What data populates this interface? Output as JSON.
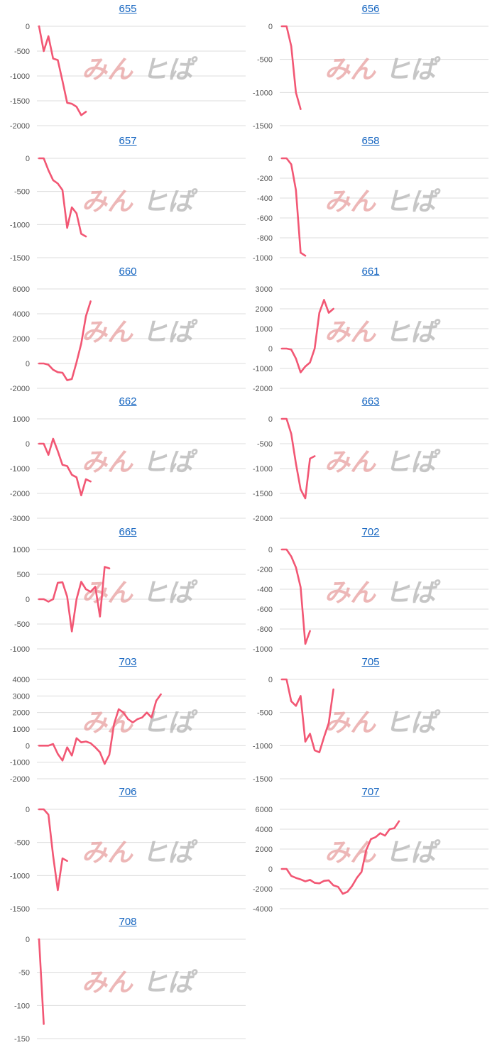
{
  "watermark": {
    "part1": "みん",
    "part2": "ヒぱ",
    "color1": "#e8a0a0",
    "color2": "#b8b8b8"
  },
  "colors": {
    "series": "#f25774",
    "title": "#1565c0",
    "grid": "#dcdcdc"
  },
  "chart_data": [
    {
      "type": "line",
      "title": "655",
      "ylim": [
        -2000,
        0
      ],
      "yticks": [
        0,
        -500,
        -1000,
        -1500,
        -2000
      ],
      "values": [
        0,
        -500,
        -200,
        -650,
        -680,
        -1100,
        -1540,
        -1560,
        -1620,
        -1790,
        -1720
      ]
    },
    {
      "type": "line",
      "title": "656",
      "ylim": [
        -1500,
        0
      ],
      "yticks": [
        0,
        -500,
        -1000,
        -1500
      ],
      "values": [
        0,
        0,
        -300,
        -1000,
        -1250
      ]
    },
    {
      "type": "line",
      "title": "657",
      "ylim": [
        -1500,
        0
      ],
      "yticks": [
        0,
        -500,
        -1000,
        -1500
      ],
      "values": [
        0,
        0,
        -180,
        -330,
        -380,
        -480,
        -1050,
        -740,
        -830,
        -1140,
        -1180
      ]
    },
    {
      "type": "line",
      "title": "658",
      "ylim": [
        -1000,
        0
      ],
      "yticks": [
        0,
        -200,
        -400,
        -600,
        -800,
        -1000
      ],
      "values": [
        0,
        0,
        -60,
        -320,
        -950,
        -980
      ]
    },
    {
      "type": "line",
      "title": "660",
      "ylim": [
        -2000,
        6000
      ],
      "yticks": [
        6000,
        4000,
        2000,
        0,
        -2000
      ],
      "values": [
        0,
        0,
        -100,
        -500,
        -700,
        -750,
        -1350,
        -1250,
        100,
        1600,
        3800,
        5000
      ]
    },
    {
      "type": "line",
      "title": "661",
      "ylim": [
        -2000,
        3000
      ],
      "yticks": [
        3000,
        2000,
        1000,
        0,
        -1000,
        -2000
      ],
      "values": [
        0,
        0,
        -50,
        -500,
        -1200,
        -900,
        -700,
        0,
        1800,
        2450,
        1800,
        2000
      ]
    },
    {
      "type": "line",
      "title": "662",
      "ylim": [
        -3000,
        1000
      ],
      "yticks": [
        1000,
        0,
        -1000,
        -2000,
        -3000
      ],
      "values": [
        0,
        0,
        -450,
        200,
        -300,
        -850,
        -900,
        -1250,
        -1350,
        -2080,
        -1430,
        -1520
      ]
    },
    {
      "type": "line",
      "title": "663",
      "ylim": [
        -2000,
        0
      ],
      "yticks": [
        0,
        -500,
        -1000,
        -1500,
        -2000
      ],
      "values": [
        0,
        0,
        -300,
        -900,
        -1420,
        -1600,
        -800,
        -750
      ]
    },
    {
      "type": "line",
      "title": "665",
      "ylim": [
        -1000,
        1000
      ],
      "yticks": [
        1000,
        500,
        0,
        -500,
        -1000
      ],
      "values": [
        0,
        0,
        -50,
        0,
        330,
        340,
        50,
        -650,
        0,
        350,
        200,
        150,
        250,
        -350,
        650,
        620
      ]
    },
    {
      "type": "line",
      "title": "702",
      "ylim": [
        -1000,
        0
      ],
      "yticks": [
        0,
        -200,
        -400,
        -600,
        -800,
        -1000
      ],
      "values": [
        0,
        0,
        -70,
        -180,
        -380,
        -950,
        -820
      ]
    },
    {
      "type": "line",
      "title": "703",
      "ylim": [
        -2000,
        4000
      ],
      "yticks": [
        4000,
        3000,
        2000,
        1000,
        0,
        -1000,
        -2000
      ],
      "values": [
        0,
        0,
        0,
        100,
        -500,
        -900,
        -100,
        -600,
        450,
        200,
        250,
        150,
        -100,
        -400,
        -1100,
        -550,
        1300,
        2200,
        2000,
        1600,
        1400,
        1600,
        1700,
        2000,
        1700,
        2700,
        3100
      ]
    },
    {
      "type": "line",
      "title": "705",
      "ylim": [
        -1500,
        0
      ],
      "yticks": [
        0,
        -500,
        -1000,
        -1500
      ],
      "values": [
        0,
        0,
        -330,
        -400,
        -250,
        -940,
        -820,
        -1070,
        -1100,
        -870,
        -660,
        -150
      ]
    },
    {
      "type": "line",
      "title": "706",
      "ylim": [
        -1500,
        0
      ],
      "yticks": [
        0,
        -500,
        -1000,
        -1500
      ],
      "values": [
        0,
        0,
        -80,
        -700,
        -1220,
        -740,
        -780
      ]
    },
    {
      "type": "line",
      "title": "707",
      "ylim": [
        -4000,
        6000
      ],
      "yticks": [
        6000,
        4000,
        2000,
        0,
        -2000,
        -4000
      ],
      "values": [
        0,
        0,
        -700,
        -900,
        -1050,
        -1250,
        -1100,
        -1400,
        -1450,
        -1200,
        -1150,
        -1650,
        -1800,
        -2500,
        -2300,
        -1700,
        -900,
        -300,
        1900,
        3000,
        3200,
        3600,
        3350,
        4000,
        4100,
        4800
      ]
    },
    {
      "type": "line",
      "title": "708",
      "ylim": [
        -150,
        0
      ],
      "yticks": [
        0,
        -50,
        -100,
        -150
      ],
      "values": [
        0,
        -128
      ]
    }
  ]
}
